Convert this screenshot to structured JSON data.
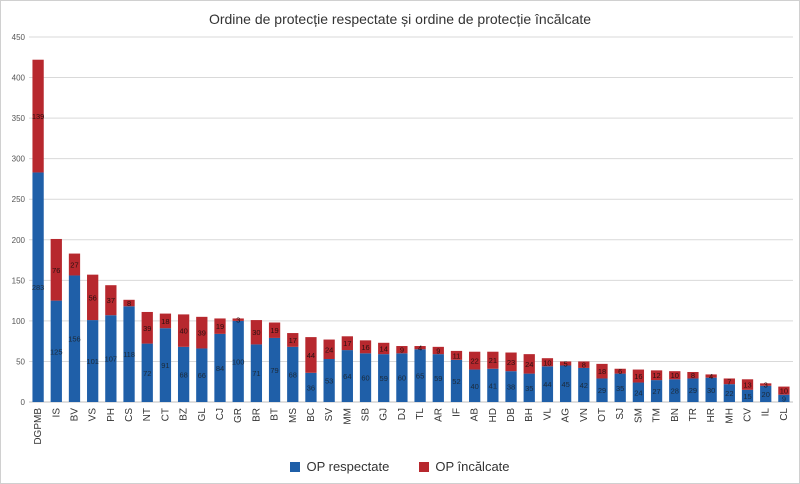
{
  "chart_data": {
    "type": "bar",
    "stacked": true,
    "title": "Ordine de protecție respectate și ordine de protecție încălcate",
    "xlabel": "",
    "ylabel": "",
    "ylim": [
      0,
      450
    ],
    "yticks": [
      0,
      50,
      100,
      150,
      200,
      250,
      300,
      350,
      400,
      450
    ],
    "grid": true,
    "legend_position": "bottom",
    "categories": [
      "DGPMB",
      "IS",
      "BV",
      "VS",
      "PH",
      "CS",
      "NT",
      "CT",
      "BZ",
      "GL",
      "CJ",
      "GR",
      "BR",
      "BT",
      "MS",
      "BC",
      "SV",
      "MM",
      "SB",
      "GJ",
      "DJ",
      "TL",
      "AR",
      "IF",
      "AB",
      "HD",
      "DB",
      "BH",
      "VL",
      "AG",
      "VN",
      "OT",
      "SJ",
      "SM",
      "TM",
      "BN",
      "TR",
      "HR",
      "MH",
      "CV",
      "IL",
      "CL"
    ],
    "series": [
      {
        "name": "OP respectate",
        "color": "#1f5fa8",
        "values": [
          283,
          125,
          156,
          101,
          107,
          118,
          72,
          91,
          68,
          66,
          84,
          100,
          71,
          79,
          68,
          36,
          53,
          64,
          60,
          59,
          60,
          65,
          59,
          52,
          40,
          41,
          38,
          35,
          44,
          45,
          42,
          29,
          35,
          24,
          27,
          28,
          29,
          30,
          22,
          15,
          20,
          9
        ]
      },
      {
        "name": "OP încălcate",
        "color": "#b7282e",
        "values": [
          139,
          76,
          27,
          56,
          37,
          8,
          39,
          18,
          40,
          39,
          19,
          3,
          30,
          19,
          17,
          44,
          24,
          17,
          16,
          14,
          9,
          4,
          9,
          11,
          22,
          21,
          23,
          24,
          10,
          5,
          8,
          18,
          6,
          16,
          12,
          10,
          8,
          4,
          7,
          13,
          3,
          10
        ]
      }
    ]
  }
}
